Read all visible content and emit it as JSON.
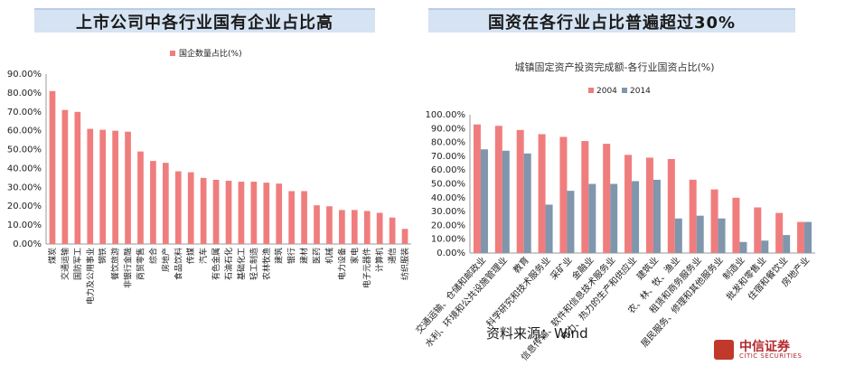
{
  "header_left": {
    "title": "上市公司中各行业国有企业占比高"
  },
  "header_right": {
    "title": "国资在各行业占比普遍超过30%"
  },
  "source": "资料来源：Wind",
  "logo": {
    "name": "中信证券",
    "english": "CITIC SECURITIES"
  },
  "colors": {
    "bar_2004": "#f07d7d",
    "bar_2014": "#7f96ad",
    "header_bg": "#d5e3f3"
  },
  "chart_data": [
    {
      "type": "bar",
      "title": "",
      "legend": [
        "国企数量占比(%)"
      ],
      "ylim": [
        0,
        90
      ],
      "yticks": [
        "0.00%",
        "10.00%",
        "20.00%",
        "30.00%",
        "40.00%",
        "50.00%",
        "60.00%",
        "70.00%",
        "80.00%",
        "90.00%"
      ],
      "categories": [
        "煤炭",
        "交通运输",
        "国防军工",
        "电力及公用事业",
        "钢铁",
        "餐饮旅游",
        "非银行金融",
        "商贸零售",
        "综合",
        "房地产",
        "食品饮料",
        "传媒",
        "汽车",
        "有色金属",
        "石油石化",
        "基础化工",
        "轻工制造",
        "农林牧渔",
        "建筑",
        "银行",
        "建材",
        "医药",
        "机械",
        "电力设备",
        "家电",
        "电子元器件",
        "计算机",
        "通信",
        "纺织服装"
      ],
      "series": [
        {
          "name": "国企数量占比(%)",
          "values": [
            81,
            71,
            70,
            61,
            60.5,
            60,
            59.5,
            49,
            44,
            43,
            38.5,
            38,
            35,
            34,
            33.5,
            33,
            33,
            32.5,
            32,
            28,
            28,
            20.5,
            20,
            18,
            18,
            17.5,
            16.5,
            14,
            8
          ]
        }
      ]
    },
    {
      "type": "bar",
      "title": "城镇固定资产投资完成额-各行业国资占比(%)",
      "legend": [
        "2004",
        "2014"
      ],
      "ylim": [
        0,
        100
      ],
      "yticks": [
        "0.00%",
        "10.00%",
        "20.00%",
        "30.00%",
        "40.00%",
        "50.00%",
        "60.00%",
        "70.00%",
        "80.00%",
        "90.00%",
        "100.00%"
      ],
      "categories": [
        "交通运输、仓储和邮政业",
        "水利、环境和公共设施管理业",
        "教育",
        "科学研究和技术服务业",
        "采矿业",
        "金融业",
        "信息传输、软件和信息技术服务业",
        "电力、热力的生产和供应业",
        "建筑业",
        "农、林、牧、渔业",
        "租赁和商务服务业",
        "居民服务、修理和其他服务业",
        "制造业",
        "批发和零售业",
        "住宿和餐饮业",
        "房地产业"
      ],
      "series": [
        {
          "name": "2004",
          "values": [
            93,
            92,
            89,
            86,
            84,
            81,
            79,
            71,
            69,
            68,
            53,
            46,
            40,
            33,
            29,
            22.5
          ]
        },
        {
          "name": "2014",
          "values": [
            75,
            74,
            72,
            35,
            45,
            50,
            50,
            52,
            53,
            25,
            27,
            25,
            8,
            9,
            13,
            22.5
          ]
        }
      ]
    }
  ]
}
